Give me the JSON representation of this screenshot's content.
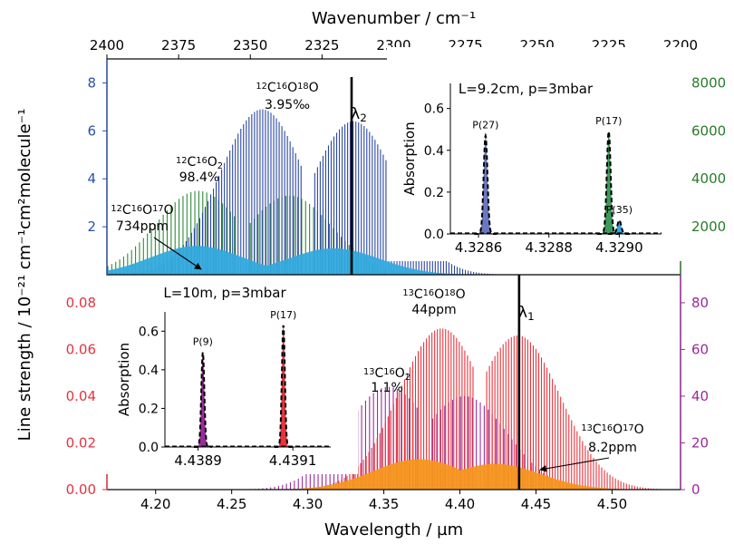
{
  "chart_data": [
    {
      "id": "top-main",
      "type": "bar",
      "description_free": true,
      "top_axis": {
        "label": "Wavenumber / cm⁻¹",
        "lim": [
          2400,
          2200
        ],
        "ticks": [
          "2400",
          "2375",
          "2350",
          "2325",
          "2300",
          "2275",
          "2250",
          "2225",
          "2200"
        ]
      },
      "left_axis": {
        "ticks": [
          "2",
          "4",
          "6",
          "8"
        ],
        "color": "#2a52a8"
      },
      "right_axis": {
        "ticks": [
          "2000",
          "4000",
          "6000",
          "8000"
        ],
        "color": "#2a7a2a"
      },
      "marker": {
        "label": "λ",
        "sub": "2",
        "x_um": 4.3288
      },
      "series": [
        {
          "iso": "12C16O18O",
          "label_pre": "",
          "label_frag": [
            [
              "12",
              "C"
            ],
            [
              "16",
              "O"
            ],
            [
              "18",
              "O"
            ]
          ],
          "value": "3.95‰",
          "color": "#2a47a3",
          "center_um": 4.3,
          "branch_gap": 0.03,
          "peak_left": 6.9,
          "peak_right": 6.4,
          "scale": "left"
        },
        {
          "iso": "12C16O2",
          "label_frag": [
            [
              "12",
              "C"
            ],
            [
              "16",
              "O"
            ]
          ],
          "label_sub": "2",
          "value": "98.4%",
          "color": "#2e8b3a",
          "center_um": 4.258,
          "branch_gap": 0.03,
          "peak_left": 3.5,
          "peak_right": 3.3,
          "scale": "left"
        },
        {
          "iso": "12C16O17O",
          "label_frag": [
            [
              "12",
              "C"
            ],
            [
              "16",
              "O"
            ],
            [
              "17",
              "O"
            ]
          ],
          "value": "734ppm",
          "color": "#33aadd",
          "center_um": 4.272,
          "branch_gap": 0.045,
          "peak_left": 1.2,
          "peak_right": 1.1,
          "scale": "left"
        }
      ]
    },
    {
      "id": "top-inset",
      "type": "line",
      "title": "L=9.2cm, p=3mbar",
      "ylabel": "Absorption",
      "xlim": [
        4.32852,
        4.32912
      ],
      "ylim": [
        0,
        0.72
      ],
      "xticks": [
        "4.3286",
        "4.3288",
        "4.3290"
      ],
      "yticks": [
        "0.0",
        "0.2",
        "0.4",
        "0.6"
      ],
      "peaks": [
        {
          "label": "P(27)",
          "x": 4.32862,
          "y": 0.47,
          "color": "#6a78c2"
        },
        {
          "label": "P(17)",
          "x": 4.32897,
          "y": 0.49,
          "color": "#3e9a5c"
        },
        {
          "label": "P(35)",
          "x": 4.329,
          "y": 0.065,
          "color": "#33aadd"
        }
      ]
    },
    {
      "id": "bottom-main",
      "type": "bar",
      "xlabel": "Wavelength / µm",
      "xlim": [
        4.168,
        4.545
      ],
      "xticks": [
        "4.20",
        "4.25",
        "4.30",
        "4.35",
        "4.40",
        "4.45",
        "4.50"
      ],
      "left_axis": {
        "ticks": [
          "0.00",
          "0.02",
          "0.04",
          "0.06",
          "0.08"
        ],
        "color": "#e4333f"
      },
      "right_axis": {
        "ticks": [
          "0",
          "20",
          "40",
          "60",
          "80"
        ],
        "color": "#9a2a9a"
      },
      "marker": {
        "label": "λ",
        "sub": "1",
        "x_um": 4.4389
      },
      "series": [
        {
          "iso": "13C16O18O",
          "label_frag": [
            [
              "13",
              "C"
            ],
            [
              "16",
              "O"
            ],
            [
              "18",
              "O"
            ]
          ],
          "value": "44ppm",
          "color": "#e8343d",
          "center_um": 4.413,
          "branch_gap": 0.025,
          "peak_left": 0.069,
          "peak_right": 0.066
        },
        {
          "iso": "13C16O2",
          "label_frag": [
            [
              "13",
              "C"
            ],
            [
              "16",
              "O"
            ]
          ],
          "label_sub": "2",
          "value": "1.1%",
          "color": "#9b2d9b",
          "center_um": 4.378,
          "branch_gap": 0.025,
          "peak_left": 0.044,
          "peak_right": 0.04
        },
        {
          "iso": "13C16O17O",
          "label_frag": [
            [
              "13",
              "C"
            ],
            [
              "16",
              "O"
            ],
            [
              "17",
              "O"
            ]
          ],
          "value": "8.2ppm",
          "color": "#f5961e",
          "center_um": 4.398,
          "branch_gap": 0.025,
          "peak_left": 0.013,
          "peak_right": 0.011
        }
      ]
    },
    {
      "id": "bottom-inset",
      "type": "line",
      "title": "L=10m, p=3mbar",
      "ylabel": "Absorption",
      "xlim": [
        4.43883,
        4.43918
      ],
      "ylim": [
        0,
        0.7
      ],
      "xticks": [
        "4.4389",
        "4.4391"
      ],
      "yticks": [
        "0.0",
        "0.2",
        "0.4",
        "0.6"
      ],
      "peaks": [
        {
          "label": "P(9)",
          "x": 4.43891,
          "y": 0.49,
          "color": "#9b2d9b"
        },
        {
          "label": "P(17)",
          "x": 4.43908,
          "y": 0.63,
          "color": "#e8343d"
        }
      ]
    }
  ],
  "labels": {
    "ylabel": "Line strength / 10⁻²¹ cm⁻¹cm²molecule⁻¹"
  }
}
